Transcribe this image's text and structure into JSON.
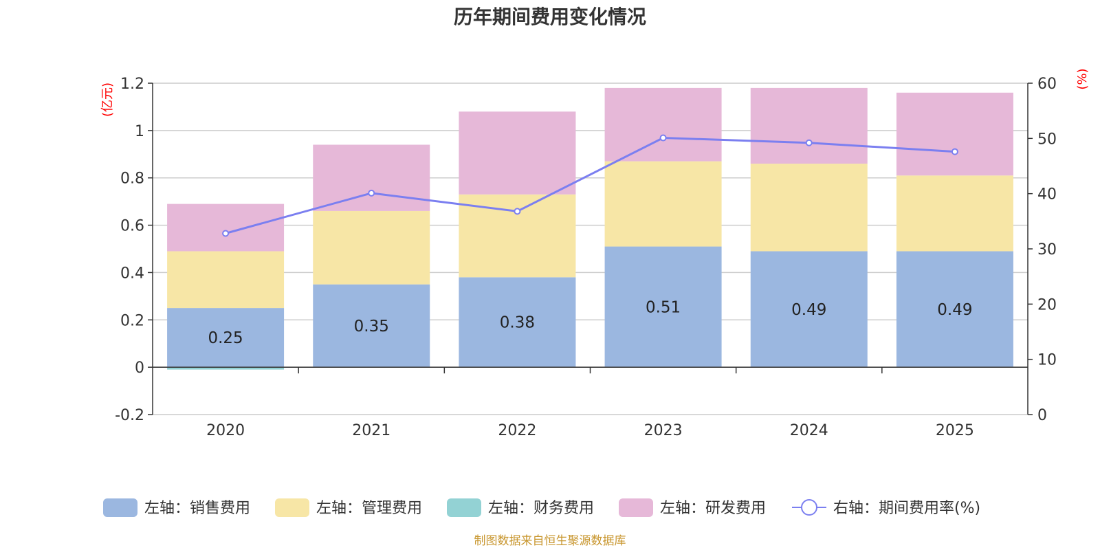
{
  "title": "历年期间费用变化情况",
  "footer": "制图数据来自恒生聚源数据库",
  "colors": {
    "sales": "#9bb7e0",
    "mgmt": "#f7e6a6",
    "finance": "#93d2d4",
    "rd": "#e6b8d8",
    "rate": "#7b7ff0",
    "grid": "#cccccc",
    "axis": "#333333",
    "unit": "#ff0000"
  },
  "chart_data": {
    "type": "bar",
    "stacked": true,
    "categories": [
      "2020",
      "2021",
      "2022",
      "2023",
      "2024",
      "2025"
    ],
    "left_axis": {
      "unit_label": "(亿元)",
      "min": -0.2,
      "max": 1.2,
      "ticks": [
        "-0.2",
        "0",
        "0.2",
        "0.4",
        "0.6",
        "0.8",
        "1",
        "1.2"
      ]
    },
    "right_axis": {
      "unit_label": "(%)",
      "min": 0,
      "max": 60,
      "ticks": [
        "0",
        "10",
        "20",
        "30",
        "40",
        "50",
        "60"
      ]
    },
    "series": [
      {
        "key": "sales",
        "name": "左轴：销售费用",
        "axis": "left",
        "values": [
          0.25,
          0.35,
          0.38,
          0.51,
          0.49,
          0.49
        ],
        "labels": [
          "0.25",
          "0.35",
          "0.38",
          "0.51",
          "0.49",
          "0.49"
        ]
      },
      {
        "key": "mgmt",
        "name": "左轴：管理费用",
        "axis": "left",
        "values": [
          0.24,
          0.31,
          0.35,
          0.36,
          0.37,
          0.32
        ]
      },
      {
        "key": "finance",
        "name": "左轴：财务费用",
        "axis": "left",
        "values": [
          -0.01,
          0,
          0,
          0,
          0,
          0
        ]
      },
      {
        "key": "rd",
        "name": "左轴：研发费用",
        "axis": "left",
        "values": [
          0.2,
          0.28,
          0.35,
          0.31,
          0.32,
          0.35
        ]
      },
      {
        "key": "rate",
        "name": "右轴：期间费用率(%)",
        "axis": "right",
        "type": "line",
        "values": [
          32.8,
          40.1,
          36.8,
          50.1,
          49.2,
          47.6
        ]
      }
    ]
  }
}
